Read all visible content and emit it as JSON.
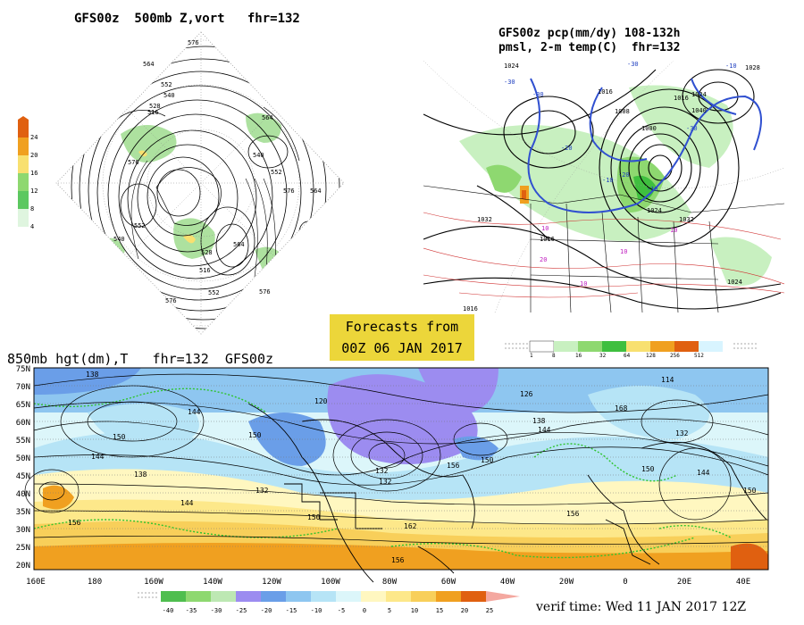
{
  "panels": {
    "z500": {
      "title": "GFS00z  500mb Z,vort   fhr=132",
      "colorbar": {
        "ticks": [
          "24",
          "20",
          "16",
          "12",
          "8",
          "4"
        ],
        "colors": [
          "#e06010",
          "#f0a020",
          "#f8e070",
          "#8ed870",
          "#5cc860",
          "#dff5df"
        ]
      },
      "contours": [
        "576",
        "564",
        "552",
        "540",
        "528",
        "516",
        "564",
        "576",
        "540",
        "552",
        "564",
        "576",
        "528",
        "516",
        "540",
        "552",
        "564",
        "552",
        "576",
        "576"
      ]
    },
    "pmsl": {
      "title1": "GFS00z pcp(mm/dy) 108-132h",
      "title2": "pmsl, 2-m temp(C)  fhr=132",
      "isobars": [
        "1024",
        "1016",
        "1008",
        "1000",
        "1016",
        "1024",
        "1032",
        "1040",
        "1028",
        "1024",
        "1024",
        "1016",
        "1016",
        "1032"
      ],
      "temps_blue": [
        "-30",
        "-30",
        "-20",
        "-10",
        "-10",
        "-20",
        "-30",
        "-10",
        "-30"
      ],
      "temps_red": [
        "10",
        "10",
        "10",
        "20",
        "10"
      ],
      "pcp_scale": {
        "ticks": [
          "1",
          "8",
          "16",
          "32",
          "64",
          "128",
          "256",
          "512"
        ],
        "colors": [
          "#ffffff",
          "#c8f0c0",
          "#8ed870",
          "#3fbf3f",
          "#f8e070",
          "#f0a020",
          "#e06010",
          "#d8f4ff"
        ]
      }
    },
    "h850": {
      "title": "850mb hgt(dm),T   fhr=132  GFS00z",
      "lat_labels": [
        "75N",
        "70N",
        "65N",
        "60N",
        "55N",
        "50N",
        "45N",
        "40N",
        "35N",
        "30N",
        "25N",
        "20N"
      ],
      "lon_labels": [
        "160E",
        "180",
        "160W",
        "140W",
        "120W",
        "100W",
        "80W",
        "60W",
        "40W",
        "20W",
        "0",
        "20E",
        "40E"
      ],
      "height_labels": [
        "138",
        "144",
        "150",
        "144",
        "138",
        "132",
        "120",
        "144",
        "150",
        "156",
        "132",
        "150",
        "156",
        "126",
        "132",
        "114",
        "168",
        "138",
        "144",
        "132",
        "150",
        "144",
        "150",
        "156",
        "162",
        "156",
        "150"
      ],
      "temp_scale": {
        "ticks": [
          "-40",
          "-35",
          "-30",
          "-25",
          "-20",
          "-15",
          "-10",
          "-5",
          "0",
          "5",
          "10",
          "15",
          "20",
          "25"
        ],
        "colors": [
          "#4fbe4f",
          "#8ed870",
          "#bde8b3",
          "#9c8cf0",
          "#6a9ee8",
          "#8ec6f0",
          "#b6e4f6",
          "#dcf6fa",
          "#fff7c0",
          "#fde88a",
          "#f8cf5a",
          "#f0a020",
          "#e06010",
          "#f4a8a0"
        ]
      }
    }
  },
  "forecast_box": {
    "line1": "Forecasts from",
    "line2": "00Z 06 JAN 2017"
  },
  "verif_time": "verif time: Wed 11 JAN 2017 12Z"
}
